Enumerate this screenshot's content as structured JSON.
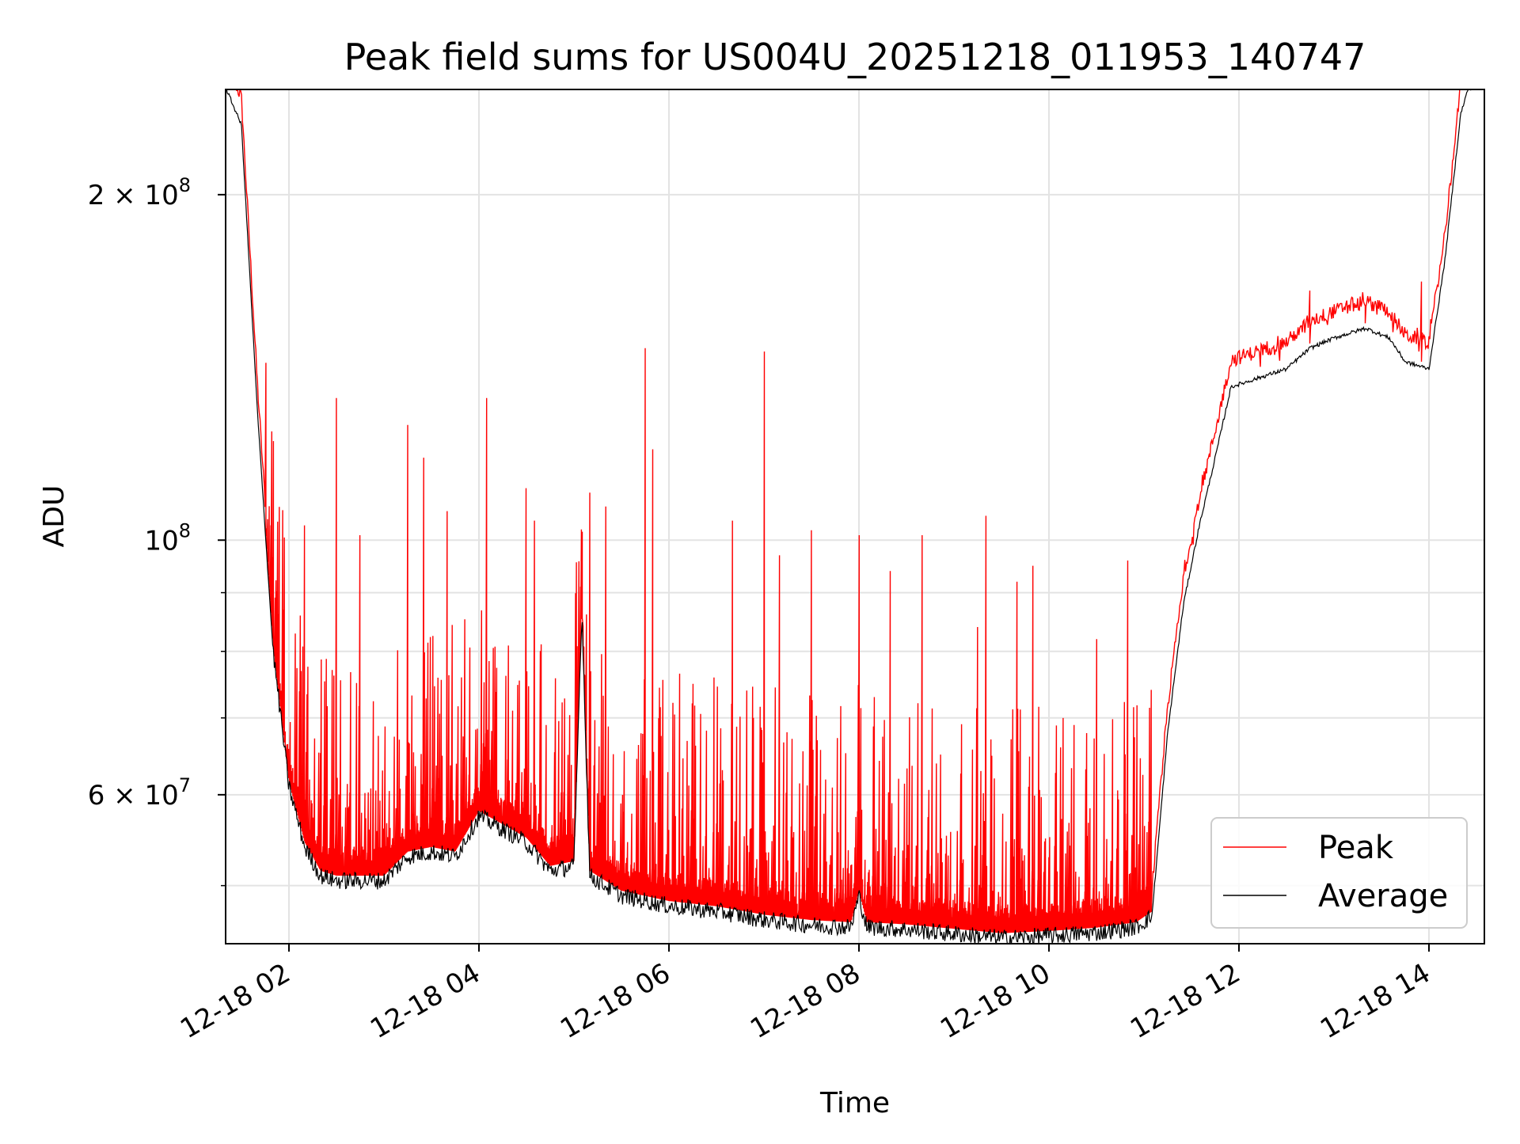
{
  "chart_data": {
    "type": "line",
    "title": "Peak field sums for US004U_20251218_011953_140747",
    "xlabel": "Time",
    "ylabel": "ADU",
    "x_scale": "time",
    "y_scale": "log",
    "xlim": [
      "2025-12-18 01:20",
      "2025-12-18 14:35"
    ],
    "ylim": [
      44500000,
      247000000
    ],
    "grid": true,
    "legend": {
      "location": "lower-right",
      "entries": [
        "Peak",
        "Average"
      ]
    },
    "x_ticks": [
      "12-18 02",
      "12-18 04",
      "12-18 06",
      "12-18 08",
      "12-18 10",
      "12-18 12",
      "12-18 14"
    ],
    "x_tick_times": [
      "2025-12-18 02:00",
      "2025-12-18 04:00",
      "2025-12-18 06:00",
      "2025-12-18 08:00",
      "2025-12-18 10:00",
      "2025-12-18 12:00",
      "2025-12-18 14:00"
    ],
    "y_major_ticks": [
      {
        "value": 200000000,
        "base": "2 × 10",
        "exp": "8"
      },
      {
        "value": 100000000,
        "base": "10",
        "exp": "8"
      },
      {
        "value": 60000000,
        "base": "6 × 10",
        "exp": "7"
      }
    ],
    "y_minor_ticks": [
      50000000,
      70000000,
      80000000,
      90000000
    ],
    "series": [
      {
        "name": "Average",
        "color": "#000000",
        "x": [
          "2025-12-18 01:20",
          "2025-12-18 01:30",
          "2025-12-18 01:40",
          "2025-12-18 01:50",
          "2025-12-18 02:00",
          "2025-12-18 02:10",
          "2025-12-18 02:20",
          "2025-12-18 02:30",
          "2025-12-18 03:00",
          "2025-12-18 03:15",
          "2025-12-18 03:30",
          "2025-12-18 03:45",
          "2025-12-18 04:00",
          "2025-12-18 04:15",
          "2025-12-18 04:30",
          "2025-12-18 04:45",
          "2025-12-18 05:00",
          "2025-12-18 05:05",
          "2025-12-18 05:10",
          "2025-12-18 05:30",
          "2025-12-18 06:00",
          "2025-12-18 06:30",
          "2025-12-18 07:00",
          "2025-12-18 07:30",
          "2025-12-18 07:55",
          "2025-12-18 08:00",
          "2025-12-18 08:05",
          "2025-12-18 08:30",
          "2025-12-18 09:00",
          "2025-12-18 09:30",
          "2025-12-18 10:00",
          "2025-12-18 10:30",
          "2025-12-18 10:55",
          "2025-12-18 11:05",
          "2025-12-18 11:15",
          "2025-12-18 11:25",
          "2025-12-18 11:35",
          "2025-12-18 11:45",
          "2025-12-18 11:55",
          "2025-12-18 12:30",
          "2025-12-18 12:45",
          "2025-12-18 13:00",
          "2025-12-18 13:20",
          "2025-12-18 13:35",
          "2025-12-18 13:45",
          "2025-12-18 14:00",
          "2025-12-18 14:10",
          "2025-12-18 14:20",
          "2025-12-18 14:25"
        ],
        "values": [
          248000000,
          230000000,
          130000000,
          80000000,
          61000000,
          54000000,
          51000000,
          50500000,
          50500000,
          53000000,
          53500000,
          53000000,
          57500000,
          56000000,
          54500000,
          51500000,
          52000000,
          87000000,
          51000000,
          49000000,
          48000000,
          47500000,
          46700000,
          46200000,
          46000000,
          49000000,
          46000000,
          45800000,
          45400000,
          45000000,
          45200000,
          45500000,
          46000000,
          47000000,
          68000000,
          88000000,
          103000000,
          118000000,
          136000000,
          141000000,
          147000000,
          150000000,
          153000000,
          150000000,
          143000000,
          141000000,
          175000000,
          235000000,
          248000000
        ]
      },
      {
        "name": "Peak",
        "color": "#ff0000",
        "base_offset": 1.04,
        "x": [
          "2025-12-18 01:50",
          "2025-12-18 02:10",
          "2025-12-18 02:30",
          "2025-12-18 02:45",
          "2025-12-18 03:15",
          "2025-12-18 03:25",
          "2025-12-18 03:40",
          "2025-12-18 04:05",
          "2025-12-18 04:30",
          "2025-12-18 04:35",
          "2025-12-18 05:10",
          "2025-12-18 05:20",
          "2025-12-18 05:45",
          "2025-12-18 05:50",
          "2025-12-18 06:40",
          "2025-12-18 07:00",
          "2025-12-18 07:10",
          "2025-12-18 07:30",
          "2025-12-18 08:00",
          "2025-12-18 08:20",
          "2025-12-18 08:40",
          "2025-12-18 09:15",
          "2025-12-18 09:20",
          "2025-12-18 09:40",
          "2025-12-18 09:50",
          "2025-12-18 10:30",
          "2025-12-18 10:50",
          "2025-12-18 12:45",
          "2025-12-18 13:20",
          "2025-12-18 13:55"
        ],
        "values": [
          122000000,
          103000000,
          133000000,
          101000000,
          126000000,
          118000000,
          106000000,
          133000000,
          111000000,
          104000000,
          110000000,
          107000000,
          147000000,
          120000000,
          104000000,
          146000000,
          97000000,
          102000000,
          101000000,
          94000000,
          101000000,
          84000000,
          105000000,
          92000000,
          95000000,
          82000000,
          96000000,
          165000000,
          160000000,
          168000000
        ]
      }
    ]
  }
}
